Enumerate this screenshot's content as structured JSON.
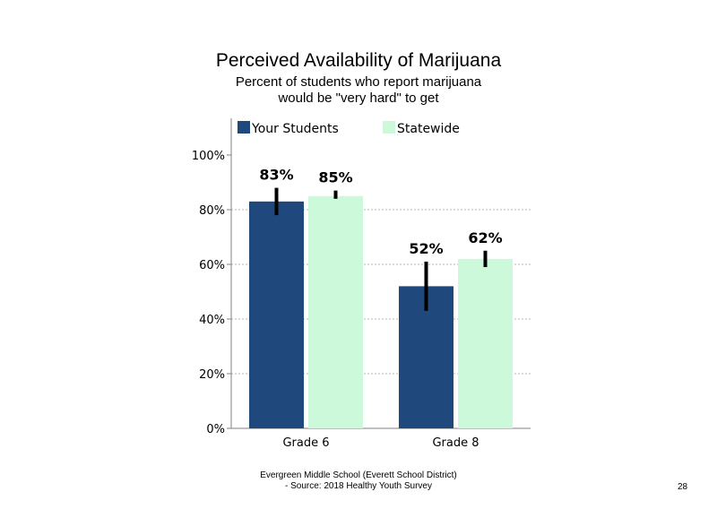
{
  "chart_data": {
    "type": "bar",
    "title": "Perceived Availability of Marijuana",
    "subtitle": [
      "Percent of students who report marijuana",
      "would be \"very hard\" to get"
    ],
    "categories": [
      "Grade 6",
      "Grade 8"
    ],
    "series": [
      {
        "name": "Your Students",
        "values": [
          83,
          52
        ],
        "labels": [
          "83%",
          "52%"
        ],
        "error": [
          [
            78,
            88
          ],
          [
            43,
            61
          ]
        ],
        "color": "#1f497d"
      },
      {
        "name": "Statewide",
        "values": [
          85,
          62
        ],
        "labels": [
          "85%",
          "62%"
        ],
        "error": [
          [
            84,
            87
          ],
          [
            59,
            65
          ]
        ],
        "color": "#ccf9d9"
      }
    ],
    "ylim": [
      0,
      100
    ],
    "yticks": [
      0,
      20,
      40,
      60,
      80,
      100
    ],
    "ytick_labels": [
      "0%",
      "20%",
      "40%",
      "60%",
      "80%",
      "100%"
    ],
    "gridlines": "dotted",
    "legend": "top"
  },
  "footer": {
    "line1": "Evergreen Middle School (Everett School District)",
    "line2": "- Source: 2018 Healthy Youth Survey"
  },
  "page_number": "28"
}
